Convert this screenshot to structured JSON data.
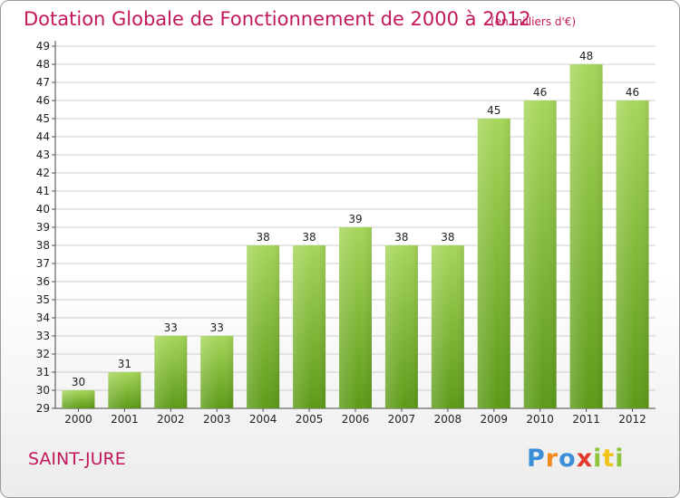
{
  "title": "Dotation Globale de Fonctionnement de 2000 à 2012",
  "subtitle": "(en milliers d'€)",
  "place": "SAINT-JURE",
  "logo": {
    "text": "Proxiti",
    "letters": [
      {
        "ch": "P",
        "color": "#3a8fd6"
      },
      {
        "ch": "r",
        "color": "#f08a1c"
      },
      {
        "ch": "o",
        "color": "#3a8fd6"
      },
      {
        "ch": "x",
        "color": "#e23a2c"
      },
      {
        "ch": "i",
        "color": "#8cc43c"
      },
      {
        "ch": "t",
        "color": "#f0c419"
      },
      {
        "ch": "i",
        "color": "#8cc43c"
      }
    ]
  },
  "colors": {
    "accent": "#c2185b",
    "bar_light": "#a6d65a",
    "bar_dark": "#5d9a18",
    "grid": "#cccccc"
  },
  "chart_data": {
    "type": "bar",
    "categories": [
      "2000",
      "2001",
      "2002",
      "2003",
      "2004",
      "2005",
      "2006",
      "2007",
      "2008",
      "2009",
      "2010",
      "2011",
      "2012"
    ],
    "values": [
      30,
      31,
      33,
      33,
      38,
      38,
      39,
      38,
      38,
      45,
      46,
      48,
      46
    ],
    "ylim": [
      29,
      49
    ],
    "yticks": [
      29,
      30,
      31,
      32,
      33,
      34,
      35,
      36,
      37,
      38,
      39,
      40,
      41,
      42,
      43,
      44,
      45,
      46,
      47,
      48,
      49
    ],
    "grid": "horizontal",
    "legend": "none",
    "data_labels": true
  }
}
